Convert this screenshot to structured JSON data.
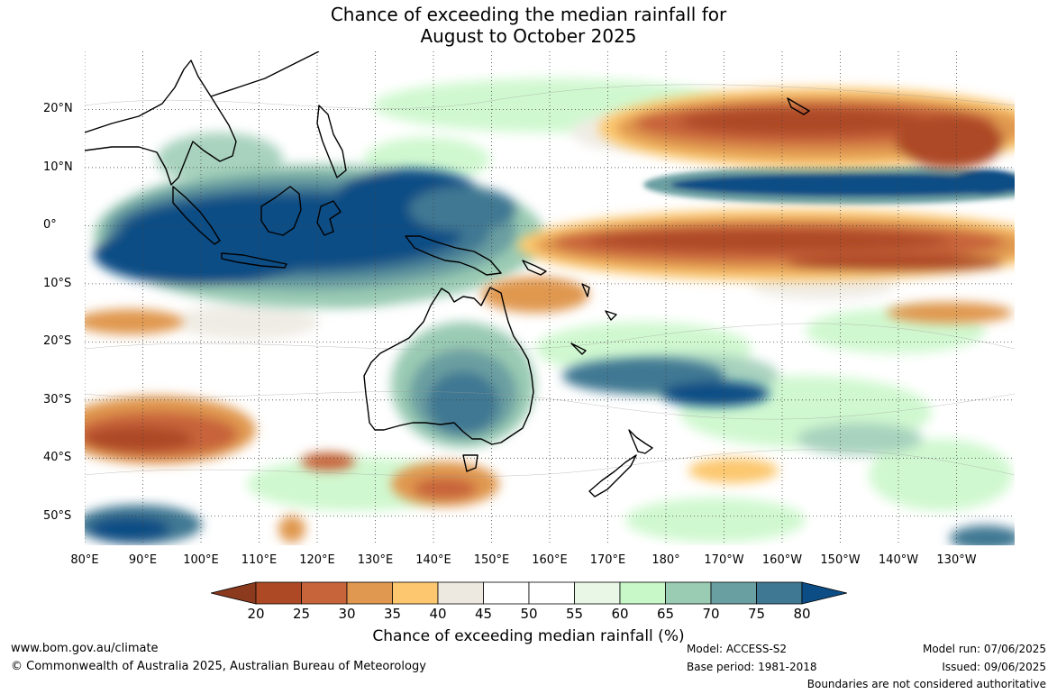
{
  "title": {
    "line1": "Chance of exceeding the median rainfall for",
    "line2": "August to October 2025"
  },
  "map": {
    "extent": {
      "lon_min": 80,
      "lon_max": 240,
      "lat_min": -55,
      "lat_max": 30
    },
    "lat_ticks": [
      {
        "lat": 20,
        "label": "20°N"
      },
      {
        "lat": 10,
        "label": "10°N"
      },
      {
        "lat": 0,
        "label": "0°"
      },
      {
        "lat": -10,
        "label": "10°S"
      },
      {
        "lat": -20,
        "label": "20°S"
      },
      {
        "lat": -30,
        "label": "30°S"
      },
      {
        "lat": -40,
        "label": "40°S"
      },
      {
        "lat": -50,
        "label": "50°S"
      }
    ],
    "lon_ticks": [
      {
        "lon": 80,
        "label": "80°E"
      },
      {
        "lon": 90,
        "label": "90°E"
      },
      {
        "lon": 100,
        "label": "100°E"
      },
      {
        "lon": 110,
        "label": "110°E"
      },
      {
        "lon": 120,
        "label": "120°E"
      },
      {
        "lon": 130,
        "label": "130°E"
      },
      {
        "lon": 140,
        "label": "140°E"
      },
      {
        "lon": 150,
        "label": "150°E"
      },
      {
        "lon": 160,
        "label": "160°E"
      },
      {
        "lon": 170,
        "label": "170°E"
      },
      {
        "lon": 180,
        "label": "180°"
      },
      {
        "lon": 190,
        "label": "170°W"
      },
      {
        "lon": 200,
        "label": "160°W"
      },
      {
        "lon": 210,
        "label": "150°W"
      },
      {
        "lon": 220,
        "label": "140°W"
      },
      {
        "lon": 230,
        "label": "130°W"
      }
    ]
  },
  "colorbar": {
    "label": "Chance of exceeding median rainfall (%)",
    "ticks": [
      "20",
      "25",
      "30",
      "35",
      "40",
      "45",
      "50",
      "55",
      "60",
      "65",
      "70",
      "75",
      "80"
    ],
    "under_color": "#8b3a1e",
    "colors": [
      "#ad4a25",
      "#c8643a",
      "#e09850",
      "#fcc76e",
      "#ede9e1",
      "#ffffff",
      "#ffffff",
      "#e9f7e6",
      "#c8f7c8",
      "#9acbb3",
      "#6a9fa1",
      "#3f7893"
    ],
    "over_color": "#0d4d85"
  },
  "footer": {
    "url": "www.bom.gov.au/climate",
    "copyright": "© Commonwealth of Australia 2025, Australian Bureau of Meteorology",
    "model": "Model: ACCESS-S2",
    "base_period": "Base period: 1981-2018",
    "model_run": "Model run: 07/06/2025",
    "issued": "Issued: 09/06/2025",
    "disclaimer": "Boundaries are not considered authoritative"
  }
}
